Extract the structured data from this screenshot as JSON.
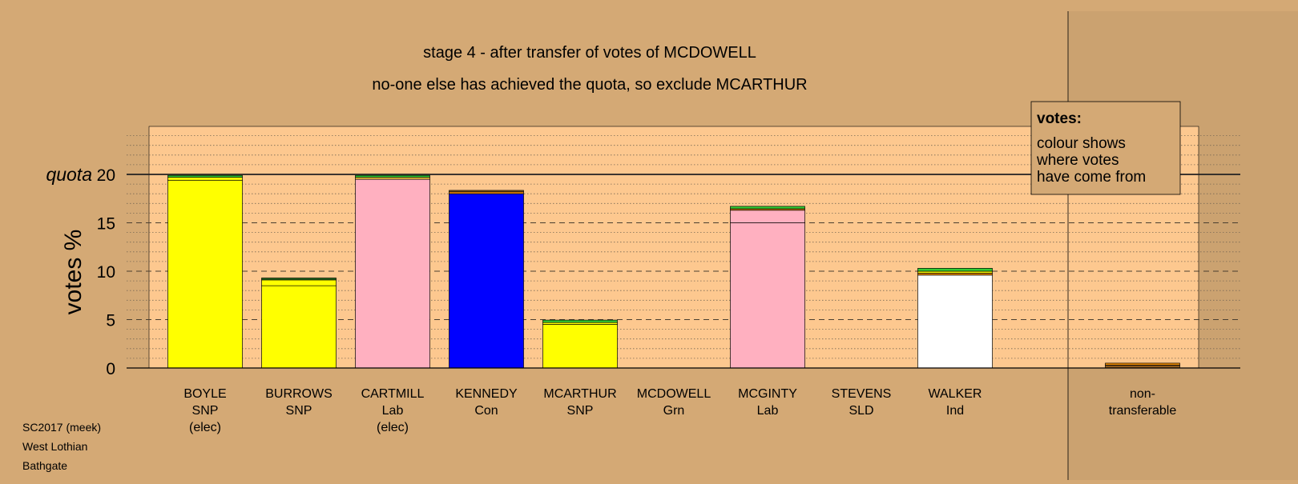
{
  "chart_data": {
    "type": "bar",
    "stacked": true,
    "title": "stage 4 - after transfer of votes of MCDOWELL",
    "subtitle": "no-one else has achieved the quota, so exclude MCARTHUR",
    "ylabel": "votes %",
    "quota_label": "quota",
    "quota": 20,
    "ylim": [
      0,
      25
    ],
    "yticks": [
      "0",
      "5",
      "10",
      "15",
      "20"
    ],
    "grid": true,
    "legend": {
      "title": "votes:",
      "lines": [
        "colour shows",
        "where votes",
        "have come from"
      ],
      "placement": "top-right"
    },
    "colors": {
      "background": "#d4a975",
      "plot": "#fdc88f",
      "snp": "#ffff00",
      "lab": "#ffb0c0",
      "con": "#0000ff",
      "ind": "#ffffff",
      "grn": "#33cc33",
      "sld": "#f08c00",
      "nontransfer": "#8b5a1e"
    },
    "candidates": [
      {
        "name": "BOYLE",
        "party": "SNP",
        "status": "(elec)",
        "segments": [
          {
            "value": 19.4,
            "color": "#ffff00"
          },
          {
            "value": 0.3,
            "color": "#ffff00"
          },
          {
            "value": 0.2,
            "color": "#33cc33"
          }
        ]
      },
      {
        "name": "BURROWS",
        "party": "SNP",
        "status": "",
        "segments": [
          {
            "value": 8.5,
            "color": "#ffff00"
          },
          {
            "value": 0.6,
            "color": "#ffff00"
          },
          {
            "value": 0.2,
            "color": "#2a6e1e"
          }
        ]
      },
      {
        "name": "CARTMILL",
        "party": "Lab",
        "status": "(elec)",
        "segments": [
          {
            "value": 19.5,
            "color": "#ffb0c0"
          },
          {
            "value": 0.2,
            "color": "#f0c040"
          },
          {
            "value": 0.2,
            "color": "#33cc33"
          }
        ]
      },
      {
        "name": "KENNEDY",
        "party": "Con",
        "status": "",
        "segments": [
          {
            "value": 18.0,
            "color": "#0000ff"
          },
          {
            "value": 0.2,
            "color": "#f08c00"
          },
          {
            "value": 0.15,
            "color": "#8b5a1e"
          }
        ]
      },
      {
        "name": "MCARTHUR",
        "party": "SNP",
        "status": "",
        "segments": [
          {
            "value": 4.5,
            "color": "#ffff00"
          },
          {
            "value": 0.2,
            "color": "#ffff00"
          },
          {
            "value": 0.25,
            "color": "#33cc33"
          }
        ]
      },
      {
        "name": "MCDOWELL",
        "party": "Grn",
        "status": "",
        "segments": []
      },
      {
        "name": "MCGINTY",
        "party": "Lab",
        "status": "",
        "segments": [
          {
            "value": 15.0,
            "color": "#ffb0c0"
          },
          {
            "value": 1.3,
            "color": "#ffb0c0"
          },
          {
            "value": 0.15,
            "color": "#f08c00"
          },
          {
            "value": 0.25,
            "color": "#33cc33"
          }
        ]
      },
      {
        "name": "STEVENS",
        "party": "SLD",
        "status": "",
        "segments": []
      },
      {
        "name": "WALKER",
        "party": "Ind",
        "status": "",
        "segments": [
          {
            "value": 9.6,
            "color": "#ffffff"
          },
          {
            "value": 0.2,
            "color": "#f08c00"
          },
          {
            "value": 0.2,
            "color": "#ffff00"
          },
          {
            "value": 0.3,
            "color": "#33cc33"
          }
        ]
      }
    ],
    "nontransferable": {
      "label_lines": [
        "non-",
        "transferable"
      ],
      "segments": [
        {
          "value": 0.3,
          "color": "#8b5a1e"
        },
        {
          "value": 0.2,
          "color": "#f08c00"
        }
      ]
    }
  },
  "footer": {
    "line1": "SC2017 (meek)",
    "line2": "West Lothian",
    "line3": "Bathgate"
  }
}
